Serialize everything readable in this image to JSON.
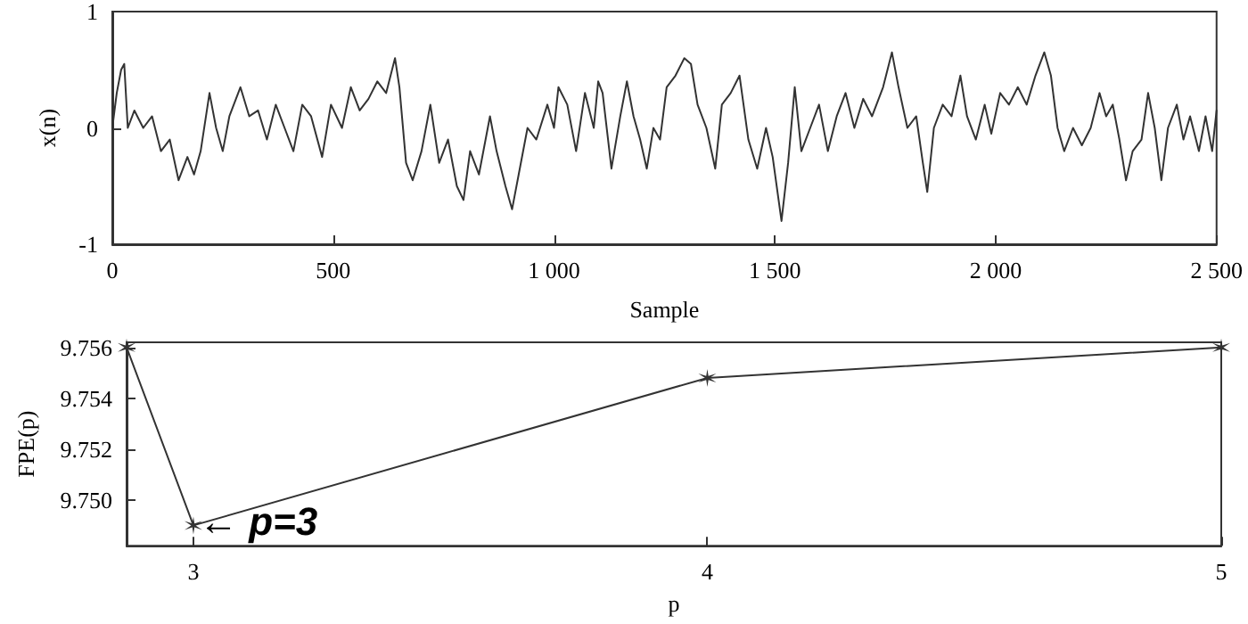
{
  "chart_data": [
    {
      "type": "line",
      "xlabel": "Sample",
      "ylabel": "x(n)",
      "xlim": [
        0,
        2500
      ],
      "ylim": [
        -1,
        1
      ],
      "xticks": [
        0,
        500,
        {
          "value": 1000,
          "label": "1 000"
        },
        {
          "value": 1500,
          "label": "1 500"
        },
        {
          "value": 2000,
          "label": "2 000"
        },
        {
          "value": 2500,
          "label": "2 500"
        }
      ],
      "yticks": [
        -1,
        0,
        1
      ],
      "grid": false,
      "marker": "none",
      "line_style": "solid",
      "series": [
        {
          "color": "#333333",
          "x": [
            0,
            10,
            20,
            27,
            35,
            50,
            70,
            90,
            110,
            130,
            150,
            170,
            185,
            200,
            220,
            235,
            250,
            265,
            290,
            310,
            330,
            350,
            370,
            390,
            410,
            430,
            450,
            475,
            495,
            520,
            540,
            560,
            580,
            600,
            620,
            640,
            650,
            665,
            680,
            700,
            720,
            740,
            760,
            780,
            795,
            810,
            830,
            855,
            870,
            890,
            905,
            920,
            940,
            960,
            985,
            1000,
            1010,
            1030,
            1050,
            1070,
            1090,
            1100,
            1110,
            1130,
            1150,
            1165,
            1180,
            1195,
            1210,
            1225,
            1240,
            1255,
            1275,
            1295,
            1310,
            1325,
            1345,
            1365,
            1380,
            1400,
            1420,
            1440,
            1460,
            1480,
            1495,
            1515,
            1530,
            1545,
            1560,
            1580,
            1600,
            1620,
            1640,
            1660,
            1680,
            1700,
            1720,
            1745,
            1765,
            1780,
            1800,
            1820,
            1835,
            1845,
            1860,
            1880,
            1900,
            1920,
            1935,
            1955,
            1975,
            1990,
            2010,
            2030,
            2050,
            2070,
            2090,
            2110,
            2125,
            2140,
            2155,
            2175,
            2195,
            2215,
            2235,
            2250,
            2265,
            2280,
            2295,
            2310,
            2330,
            2345,
            2360,
            2375,
            2390,
            2410,
            2425,
            2440,
            2460,
            2475,
            2490,
            2500
          ],
          "values": [
            0,
            0.3,
            0.5,
            0.55,
            0,
            0.15,
            0,
            0.1,
            -0.2,
            -0.1,
            -0.45,
            -0.25,
            -0.4,
            -0.2,
            0.3,
            0,
            -0.2,
            0.1,
            0.35,
            0.1,
            0.15,
            -0.1,
            0.2,
            0,
            -0.2,
            0.2,
            0.1,
            -0.25,
            0.2,
            0,
            0.35,
            0.15,
            0.25,
            0.4,
            0.3,
            0.6,
            0.35,
            -0.3,
            -0.45,
            -0.2,
            0.2,
            -0.3,
            -0.1,
            -0.5,
            -0.62,
            -0.2,
            -0.4,
            0.1,
            -0.2,
            -0.5,
            -0.7,
            -0.4,
            0,
            -0.1,
            0.2,
            0,
            0.35,
            0.2,
            -0.2,
            0.3,
            0,
            0.4,
            0.3,
            -0.35,
            0.1,
            0.4,
            0.1,
            -0.1,
            -0.35,
            0,
            -0.1,
            0.35,
            0.45,
            0.6,
            0.55,
            0.2,
            0,
            -0.35,
            0.2,
            0.3,
            0.45,
            -0.1,
            -0.35,
            0,
            -0.25,
            -0.8,
            -0.3,
            0.35,
            -0.2,
            0,
            0.2,
            -0.2,
            0.1,
            0.3,
            0,
            0.25,
            0.1,
            0.35,
            0.65,
            0.35,
            0,
            0.1,
            -0.3,
            -0.55,
            0,
            0.2,
            0.1,
            0.45,
            0.1,
            -0.1,
            0.2,
            -0.05,
            0.3,
            0.2,
            0.35,
            0.2,
            0.45,
            0.65,
            0.45,
            0,
            -0.2,
            0,
            -0.15,
            0,
            0.3,
            0.1,
            0.2,
            -0.1,
            -0.45,
            -0.2,
            -0.1,
            0.3,
            0,
            -0.45,
            0,
            0.2,
            -0.1,
            0.1,
            -0.2,
            0.1,
            -0.2,
            0.15
          ]
        }
      ]
    },
    {
      "type": "line",
      "xlabel": "p",
      "ylabel": "FPE(p)",
      "xlim": [
        2.87,
        5
      ],
      "ylim": [
        9.7482,
        9.7562
      ],
      "xticks": [
        3,
        4,
        5
      ],
      "yticks": [
        {
          "value": 9.75,
          "label": "9.750"
        },
        {
          "value": 9.752,
          "label": "9.752"
        },
        {
          "value": 9.754,
          "label": "9.754"
        },
        {
          "value": 9.756,
          "label": "9.756"
        }
      ],
      "grid": false,
      "line_style": "solid",
      "marker": "cross",
      "annotations": [
        {
          "text": "← p=3",
          "x": 3,
          "y": 9.749
        }
      ],
      "series": [
        {
          "color": "#333333",
          "x": [
            2.87,
            3,
            4,
            5
          ],
          "values": [
            9.756,
            9.749,
            9.7548,
            9.756
          ]
        }
      ]
    }
  ]
}
